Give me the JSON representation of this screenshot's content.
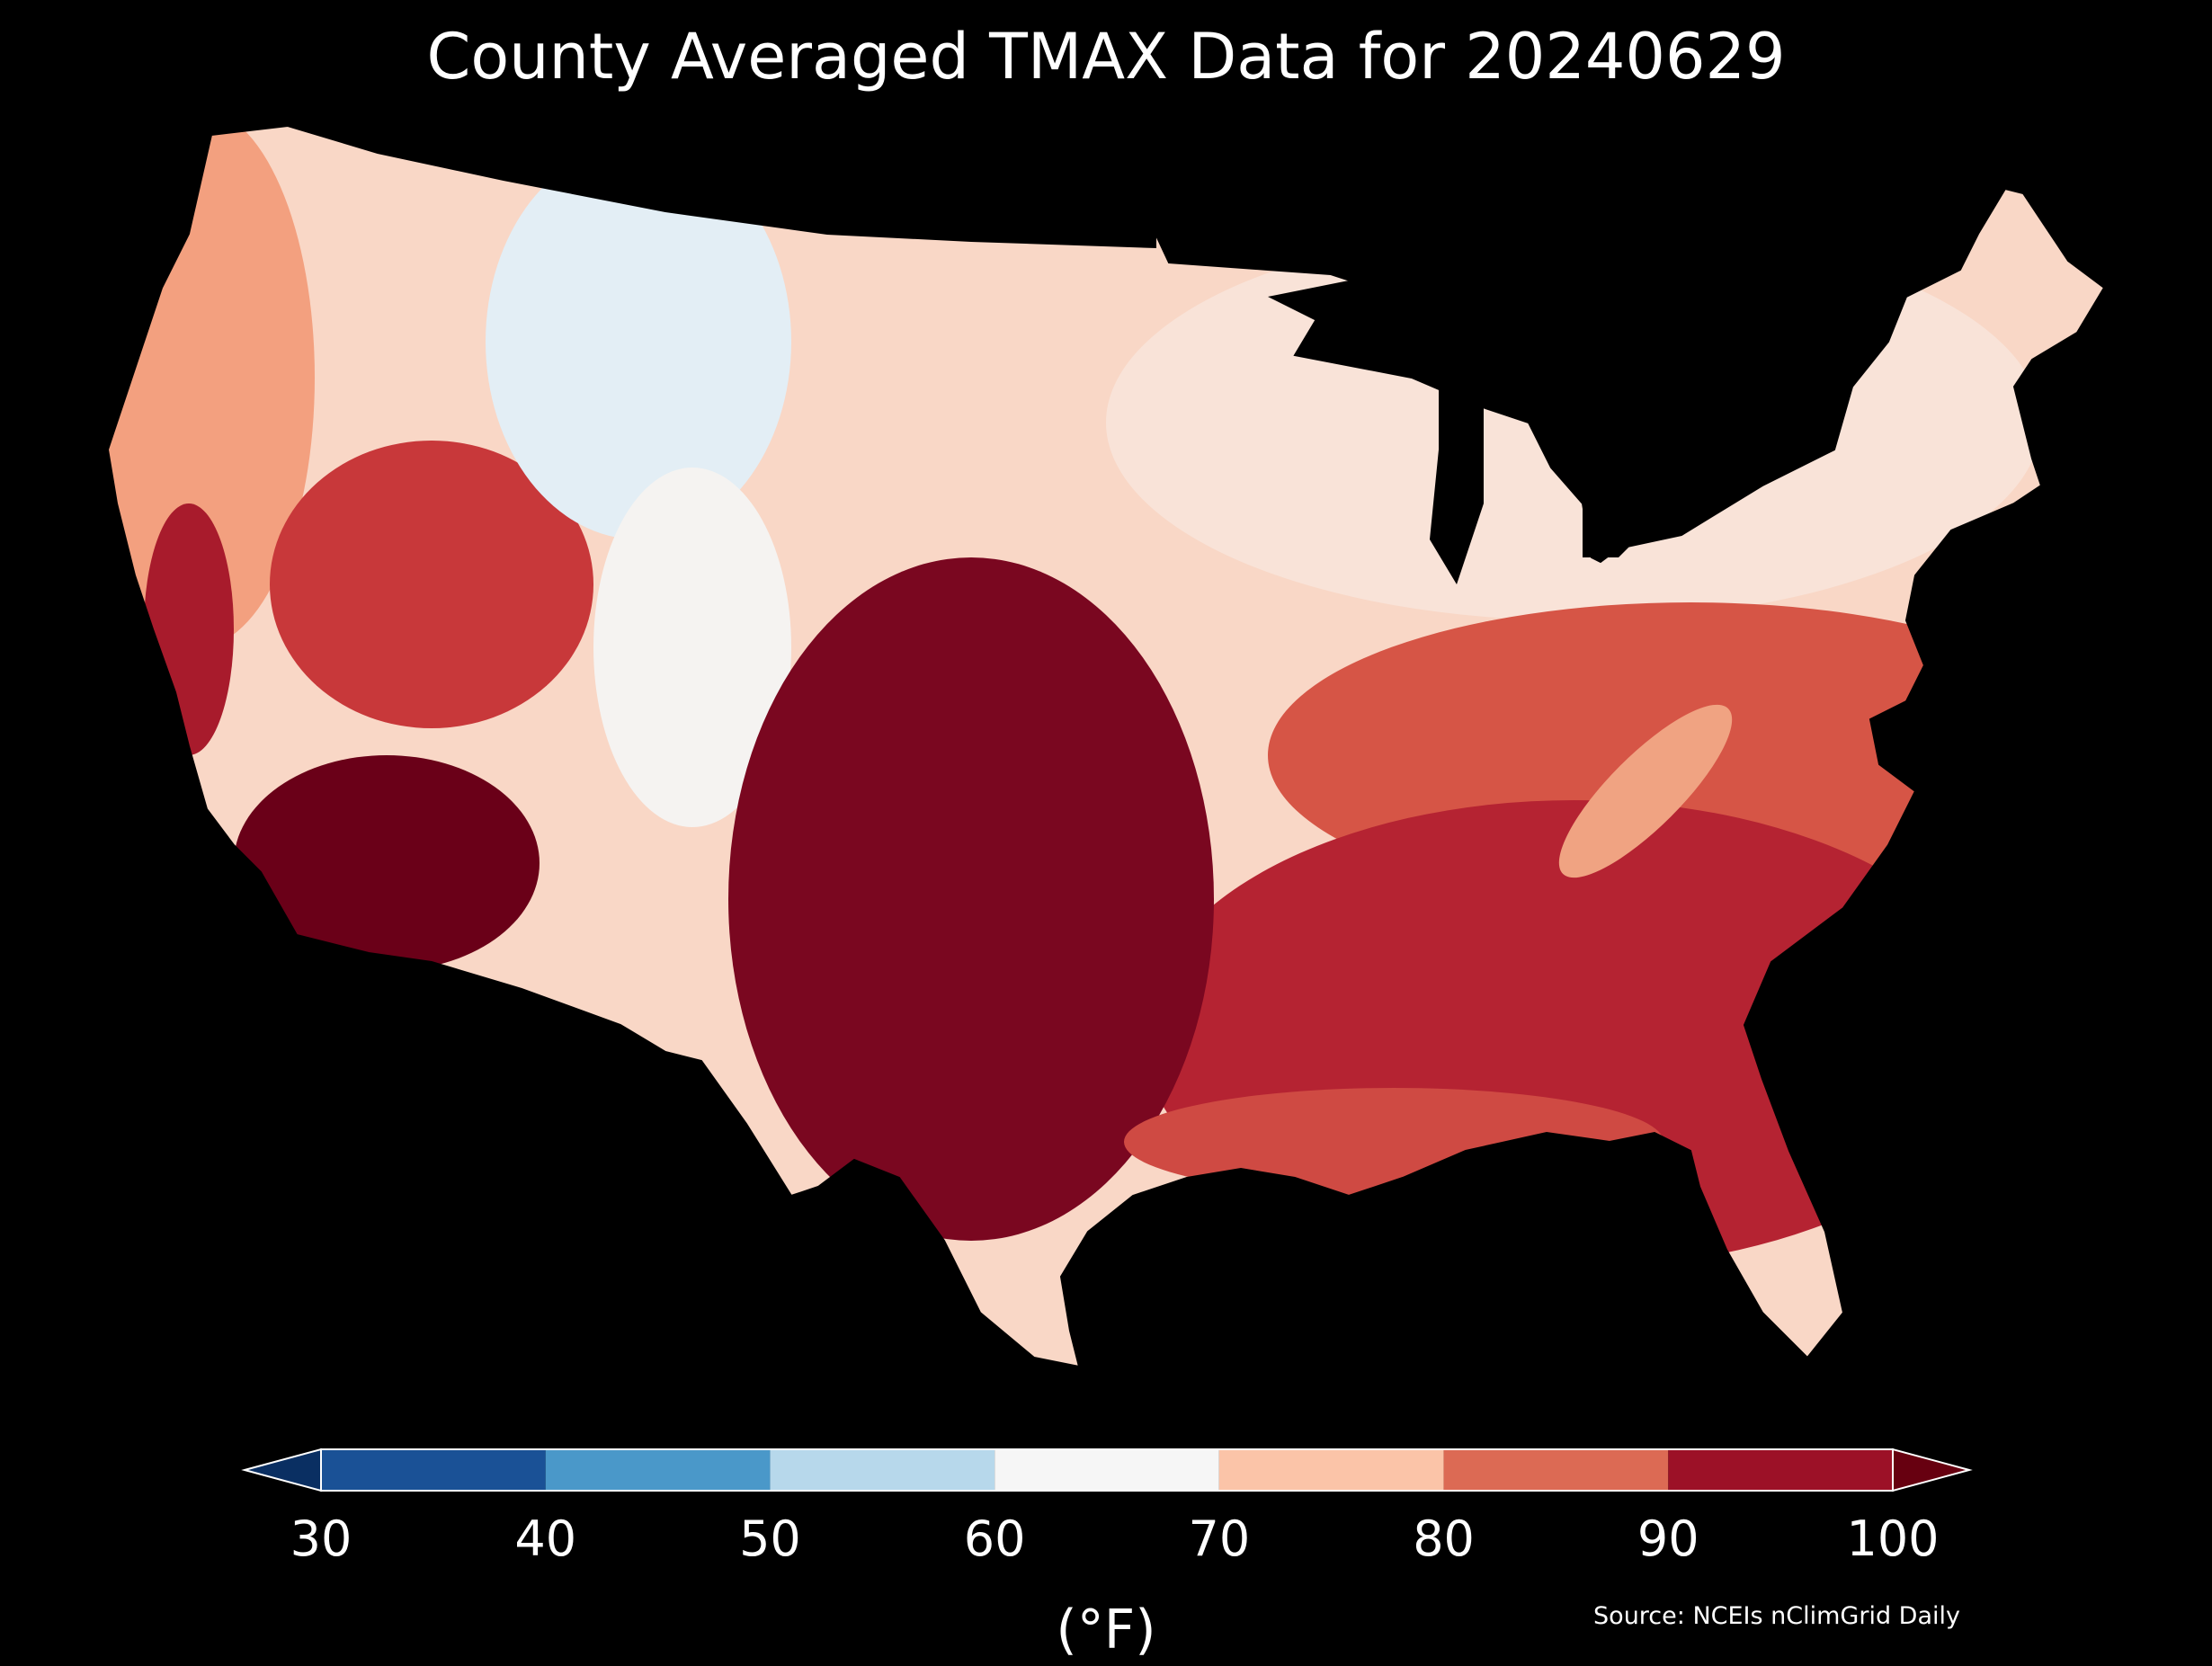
{
  "title": "County Averaged TMAX Data for 20240629",
  "colorbar": {
    "unit_label": "(°F)",
    "ticks": [
      "30",
      "40",
      "50",
      "60",
      "70",
      "80",
      "90",
      "100"
    ],
    "bins": [
      {
        "range": [
          30,
          40
        ],
        "color": "#1a5196"
      },
      {
        "range": [
          40,
          50
        ],
        "color": "#4a98c9"
      },
      {
        "range": [
          50,
          60
        ],
        "color": "#b7d8eb"
      },
      {
        "range": [
          60,
          70
        ],
        "color": "#f6f6f6"
      },
      {
        "range": [
          70,
          80
        ],
        "color": "#fbc4a8"
      },
      {
        "range": [
          80,
          90
        ],
        "color": "#dc6a54"
      },
      {
        "range": [
          90,
          100
        ],
        "color": "#9c1127"
      }
    ],
    "under_color": "#0a2f62",
    "over_color": "#670010"
  },
  "source": "Source: NCEIs nClimGrid Daily",
  "regions": {
    "pacific_northwest": {
      "color": "#f3a07f"
    },
    "montana_cool": {
      "color": "#e3eef5"
    },
    "north_plains": {
      "color": "#f9d7c6"
    },
    "great_lakes_northeast": {
      "color": "#f9e3d8"
    },
    "california_interior": {
      "color": "#a81b2c"
    },
    "great_basin": {
      "color": "#c8383a"
    },
    "southwest_desert": {
      "color": "#6a0018"
    },
    "colorado_rockies": {
      "color": "#f5f3f1"
    },
    "southern_plains": {
      "color": "#7a0720"
    },
    "southeast": {
      "color": "#b52332"
    },
    "mid_atlantic": {
      "color": "#d65546"
    },
    "appalachian_ridge": {
      "color": "#f0a382"
    },
    "gulf_coast": {
      "color": "#cf4a43"
    }
  }
}
